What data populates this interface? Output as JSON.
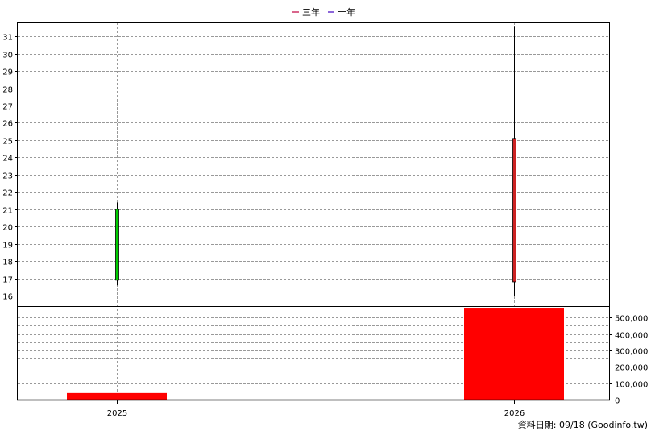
{
  "chart_data": [
    {
      "type": "candlestick",
      "categories": [
        "2025",
        "2026"
      ],
      "ylim": [
        15.4,
        31.8
      ],
      "yticks": [
        "16",
        "17",
        "18",
        "19",
        "20",
        "21",
        "22",
        "23",
        "24",
        "25",
        "26",
        "27",
        "28",
        "29",
        "30",
        "31"
      ],
      "candles": [
        {
          "x": "2025",
          "open": 16.9,
          "close": 21.0,
          "low": 16.6,
          "high": 21.4,
          "color": "#00cc00"
        },
        {
          "x": "2026",
          "open": 25.1,
          "close": 16.8,
          "low": 16.0,
          "high": 31.6,
          "color": "#cc2222"
        }
      ],
      "legend": [
        {
          "label": "三年",
          "color": "#cc3366"
        },
        {
          "label": "十年",
          "color": "#6633cc"
        }
      ],
      "grid": true,
      "legend_position": "top-center"
    },
    {
      "type": "bar",
      "categories": [
        "2025",
        "2026"
      ],
      "values": [
        40000,
        560000
      ],
      "ylim": [
        0,
        570000
      ],
      "yticks": [
        "0",
        "100,000",
        "200,000",
        "300,000",
        "400,000",
        "500,000"
      ],
      "color": "#ff0000",
      "grid": true
    }
  ],
  "footer": "資料日期: 09/18  (Goodinfo.tw)"
}
